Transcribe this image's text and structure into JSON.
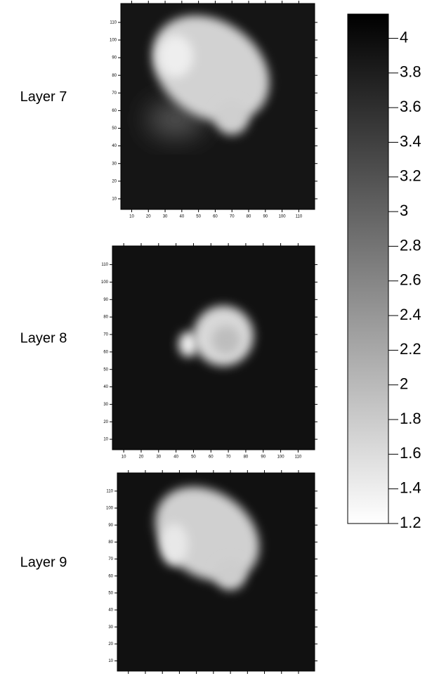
{
  "chart_data": [
    {
      "type": "heatmap",
      "label": "Layer 7",
      "xlim": [
        3.5,
        119.5
      ],
      "ylim": [
        4,
        120.7
      ],
      "xticks": [
        10,
        20,
        30,
        40,
        50,
        60,
        70,
        80,
        90,
        100,
        110
      ],
      "yticks": [
        10,
        20,
        30,
        40,
        50,
        60,
        70,
        80,
        90,
        100,
        110
      ]
    },
    {
      "type": "heatmap",
      "label": "Layer 8",
      "xlim": [
        3.5,
        119.5
      ],
      "ylim": [
        4,
        120.7
      ],
      "xticks": [
        10,
        20,
        30,
        40,
        50,
        60,
        70,
        80,
        90,
        100,
        110
      ],
      "yticks": [
        10,
        20,
        30,
        40,
        50,
        60,
        70,
        80,
        90,
        100,
        110
      ]
    },
    {
      "type": "heatmap",
      "label": "Layer 9",
      "xlim": [
        3.5,
        119.5
      ],
      "ylim": [
        4,
        120.7
      ],
      "xticks": [
        10,
        20,
        30,
        40,
        50,
        60,
        70,
        80,
        90,
        100,
        110
      ],
      "yticks": [
        10,
        20,
        30,
        40,
        50,
        60,
        70,
        80,
        90,
        100,
        110
      ]
    },
    {
      "type": "colorbar",
      "ylim": [
        1.2,
        4.14
      ],
      "yticks": [
        1.2,
        1.4,
        1.6,
        1.8,
        2,
        2.2,
        2.4,
        2.6,
        2.8,
        3,
        3.2,
        3.4,
        3.6,
        3.8,
        4
      ],
      "colors": [
        "#ffffff",
        "#000000"
      ]
    }
  ]
}
